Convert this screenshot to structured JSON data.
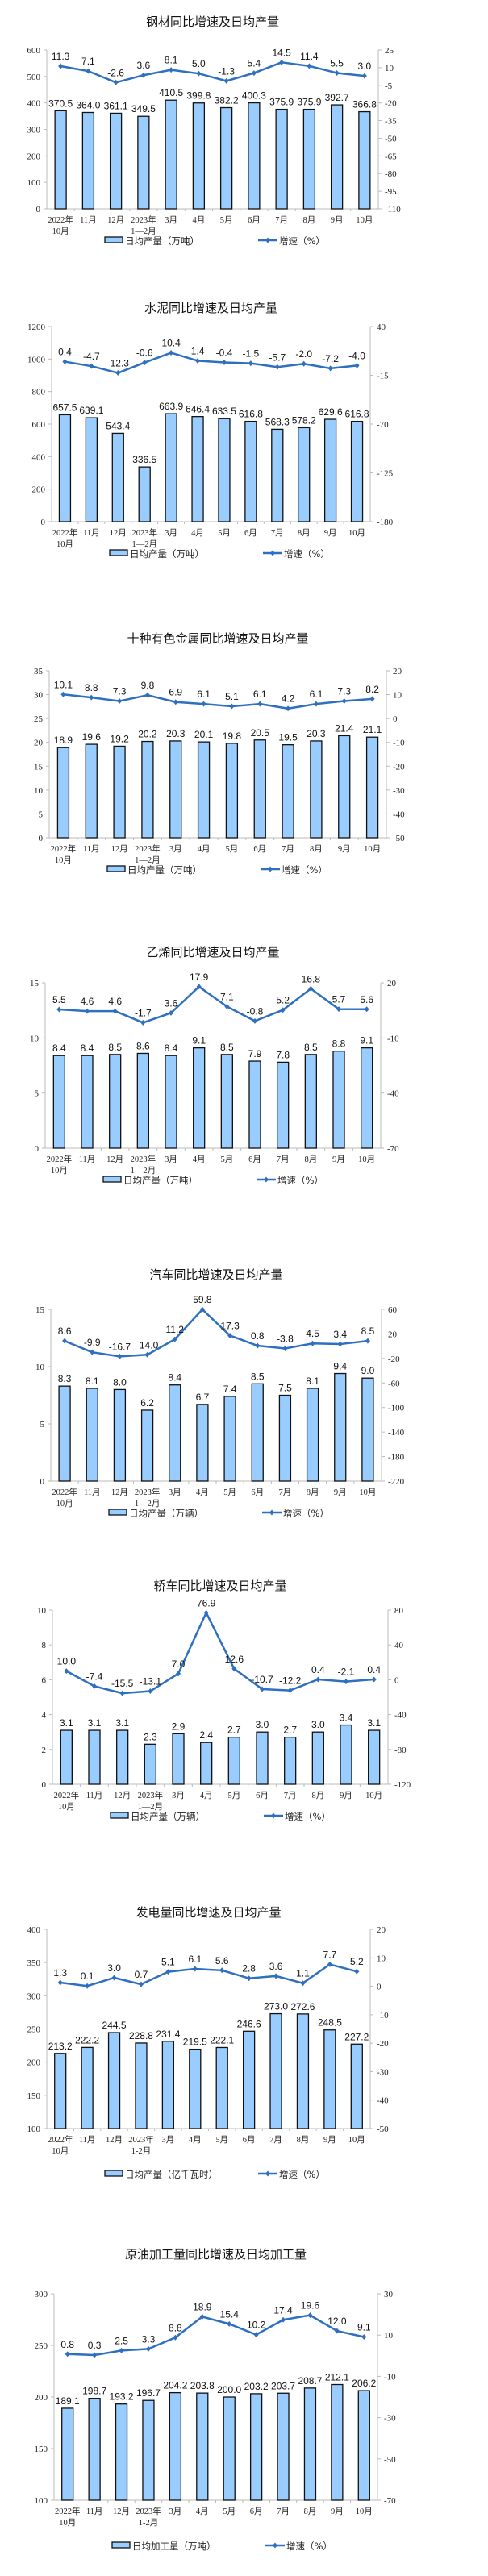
{
  "colors": {
    "bar_fill": "#99CCFF",
    "bar_stroke": "#111111",
    "line": "#2E6FC0",
    "axis": "#BBBBBB"
  },
  "chart_data": [
    {
      "type": "bar+line",
      "title": "钢材同比增速及日均产量",
      "categories": [
        [
          "2022年",
          "10月"
        ],
        [
          "11月"
        ],
        [
          "12月"
        ],
        [
          "2023年",
          "1—2月"
        ],
        [
          "3月"
        ],
        [
          "4月"
        ],
        [
          "5月"
        ],
        [
          "6月"
        ],
        [
          "7月"
        ],
        [
          "8月"
        ],
        [
          "9月"
        ],
        [
          "10月"
        ]
      ],
      "series": [
        {
          "name": "日均产量（万吨）",
          "type": "bar",
          "axis": "left",
          "values": [
            370.5,
            364.0,
            361.1,
            349.5,
            410.5,
            399.8,
            382.2,
            400.3,
            375.9,
            375.9,
            392.7,
            366.8
          ],
          "labels": [
            "370.5",
            "364.0",
            "361.1",
            "349.5",
            "410.5",
            "399.8",
            "382.2",
            "400.3",
            "375.9",
            "375.9",
            "392.7",
            "366.8"
          ]
        },
        {
          "name": "增速（%）",
          "type": "line",
          "axis": "right",
          "values": [
            11.3,
            7.1,
            -2.6,
            3.6,
            8.1,
            5.0,
            -1.3,
            5.4,
            14.5,
            11.4,
            5.5,
            3.0
          ],
          "labels": [
            "11.3",
            "7.1",
            "-2.6",
            "3.6",
            "8.1",
            "5.0",
            "-1.3",
            "5.4",
            "14.5",
            "11.4",
            "5.5",
            "3.0"
          ]
        }
      ],
      "ylim": [
        0,
        600
      ],
      "ystep": 100,
      "y2lim": [
        -110,
        25
      ],
      "y2step": 15,
      "grid": false,
      "legend": "bottom"
    },
    {
      "type": "bar+line",
      "title": "水泥同比增速及日均产量",
      "categories": [
        [
          "2022年",
          "10月"
        ],
        [
          "11月"
        ],
        [
          "12月"
        ],
        [
          "2023年",
          "1—2月"
        ],
        [
          "3月"
        ],
        [
          "4月"
        ],
        [
          "5月"
        ],
        [
          "6月"
        ],
        [
          "7月"
        ],
        [
          "8月"
        ],
        [
          "9月"
        ],
        [
          "10月"
        ]
      ],
      "series": [
        {
          "name": "日均产量（万吨）",
          "type": "bar",
          "axis": "left",
          "values": [
            657.5,
            639.1,
            543.4,
            336.5,
            663.9,
            646.4,
            633.5,
            616.8,
            568.3,
            578.2,
            629.6,
            616.8
          ],
          "labels": [
            "657.5",
            "639.1",
            "543.4",
            "336.5",
            "663.9",
            "646.4",
            "633.5",
            "616.8",
            "568.3",
            "578.2",
            "629.6",
            "616.8"
          ]
        },
        {
          "name": "增速（%）",
          "type": "line",
          "axis": "right",
          "values": [
            0.4,
            -4.7,
            -12.3,
            -0.6,
            10.4,
            1.4,
            -0.4,
            -1.5,
            -5.7,
            -2.0,
            -7.2,
            -4.0
          ],
          "labels": [
            "0.4",
            "-4.7",
            "-12.3",
            "-0.6",
            "10.4",
            "1.4",
            "-0.4",
            "-1.5",
            "-5.7",
            "-2.0",
            "-7.2",
            "-4.0"
          ]
        }
      ],
      "ylim": [
        0,
        1200
      ],
      "ystep": 200,
      "y2lim": [
        -180,
        40
      ],
      "y2step": 55,
      "grid": false,
      "legend": "bottom"
    },
    {
      "type": "bar+line",
      "title": "十种有色金属同比增速及日均产量",
      "categories": [
        [
          "2022年",
          "10月"
        ],
        [
          "11月"
        ],
        [
          "12月"
        ],
        [
          "2023年",
          "1—2月"
        ],
        [
          "3月"
        ],
        [
          "4月"
        ],
        [
          "5月"
        ],
        [
          "6月"
        ],
        [
          "7月"
        ],
        [
          "8月"
        ],
        [
          "9月"
        ],
        [
          "10月"
        ]
      ],
      "series": [
        {
          "name": "日均产量（万吨）",
          "type": "bar",
          "axis": "left",
          "values": [
            18.9,
            19.6,
            19.2,
            20.2,
            20.3,
            20.1,
            19.8,
            20.5,
            19.5,
            20.3,
            21.4,
            21.1
          ],
          "labels": [
            "18.9",
            "19.6",
            "19.2",
            "20.2",
            "20.3",
            "20.1",
            "19.8",
            "20.5",
            "19.5",
            "20.3",
            "21.4",
            "21.1"
          ]
        },
        {
          "name": "增速（%）",
          "type": "line",
          "axis": "right",
          "values": [
            10.1,
            8.8,
            7.3,
            9.8,
            6.9,
            6.1,
            5.1,
            6.1,
            4.2,
            6.1,
            7.3,
            8.2
          ],
          "labels": [
            "10.1",
            "8.8",
            "7.3",
            "9.8",
            "6.9",
            "6.1",
            "5.1",
            "6.1",
            "4.2",
            "6.1",
            "7.3",
            "8.2"
          ]
        }
      ],
      "ylim": [
        0,
        35
      ],
      "ystep": 5,
      "y2lim": [
        -50,
        20
      ],
      "y2step": 10,
      "grid": false,
      "legend": "bottom"
    },
    {
      "type": "bar+line",
      "title": "乙烯同比增速及日均产量",
      "categories": [
        [
          "2022年",
          "10月"
        ],
        [
          "11月"
        ],
        [
          "12月"
        ],
        [
          "2023年",
          "1—2月"
        ],
        [
          "3月"
        ],
        [
          "4月"
        ],
        [
          "5月"
        ],
        [
          "6月"
        ],
        [
          "7月"
        ],
        [
          "8月"
        ],
        [
          "9月"
        ],
        [
          "10月"
        ]
      ],
      "series": [
        {
          "name": "日均产量（万吨）",
          "type": "bar",
          "axis": "left",
          "values": [
            8.4,
            8.4,
            8.5,
            8.6,
            8.4,
            9.1,
            8.5,
            7.9,
            7.8,
            8.5,
            8.8,
            9.1
          ],
          "labels": [
            "8.4",
            "8.4",
            "8.5",
            "8.6",
            "8.4",
            "9.1",
            "8.5",
            "7.9",
            "7.8",
            "8.5",
            "8.8",
            "9.1"
          ]
        },
        {
          "name": "增速（%）",
          "type": "line",
          "axis": "right",
          "values": [
            5.5,
            4.6,
            4.6,
            -1.7,
            3.6,
            17.9,
            7.1,
            -0.8,
            5.2,
            16.8,
            5.7,
            5.6
          ],
          "labels": [
            "5.5",
            "4.6",
            "4.6",
            "-1.7",
            "3.6",
            "17.9",
            "7.1",
            "-0.8",
            "5.2",
            "16.8",
            "5.7",
            "5.6"
          ]
        }
      ],
      "ylim": [
        0,
        15
      ],
      "ystep": 5,
      "y2lim": [
        -70,
        20
      ],
      "y2step": 30,
      "grid": false,
      "legend": "bottom"
    },
    {
      "type": "bar+line",
      "title": "汽车同比增速及日均产量",
      "categories": [
        [
          "2022年",
          "10月"
        ],
        [
          "11月"
        ],
        [
          "12月"
        ],
        [
          "2023年",
          "1—2月"
        ],
        [
          "3月"
        ],
        [
          "4月"
        ],
        [
          "5月"
        ],
        [
          "6月"
        ],
        [
          "7月"
        ],
        [
          "8月"
        ],
        [
          "9月"
        ],
        [
          "10月"
        ]
      ],
      "series": [
        {
          "name": "日均产量（万辆）",
          "type": "bar",
          "axis": "left",
          "values": [
            8.3,
            8.1,
            8.0,
            6.2,
            8.4,
            6.7,
            7.4,
            8.5,
            7.5,
            8.1,
            9.4,
            9.0
          ],
          "labels": [
            "8.3",
            "8.1",
            "8.0",
            "6.2",
            "8.4",
            "6.7",
            "7.4",
            "8.5",
            "7.5",
            "8.1",
            "9.4",
            "9.0"
          ]
        },
        {
          "name": "增速（%）",
          "type": "line",
          "axis": "right",
          "values": [
            8.6,
            -9.9,
            -16.7,
            -14.0,
            11.2,
            59.8,
            17.3,
            0.8,
            -3.8,
            4.5,
            3.4,
            8.5
          ],
          "labels": [
            "8.6",
            "-9.9",
            "-16.7",
            "-14.0",
            "11.2",
            "59.8",
            "17.3",
            "0.8",
            "-3.8",
            "4.5",
            "3.4",
            "8.5"
          ]
        }
      ],
      "ylim": [
        0,
        15
      ],
      "ystep": 5,
      "y2lim": [
        -220,
        60
      ],
      "y2step": 40,
      "grid": false,
      "legend": "bottom"
    },
    {
      "type": "bar+line",
      "title": "轿车同比增速及日均产量",
      "categories": [
        [
          "2022年",
          "10月"
        ],
        [
          "11月"
        ],
        [
          "12月"
        ],
        [
          "2023年",
          "1—2月"
        ],
        [
          "3月"
        ],
        [
          "4月"
        ],
        [
          "5月"
        ],
        [
          "6月"
        ],
        [
          "7月"
        ],
        [
          "8月"
        ],
        [
          "9月"
        ],
        [
          "10月"
        ]
      ],
      "series": [
        {
          "name": "日均产量（万辆）",
          "type": "bar",
          "axis": "left",
          "values": [
            3.1,
            3.1,
            3.1,
            2.3,
            2.9,
            2.4,
            2.7,
            3.0,
            2.7,
            3.0,
            3.4,
            3.1
          ],
          "labels": [
            "3.1",
            "3.1",
            "3.1",
            "2.3",
            "2.9",
            "2.4",
            "2.7",
            "3.0",
            "2.7",
            "3.0",
            "3.4",
            "3.1"
          ]
        },
        {
          "name": "增速（%）",
          "type": "line",
          "axis": "right",
          "values": [
            10.0,
            -7.4,
            -15.5,
            -13.1,
            7.0,
            76.9,
            12.6,
            -10.7,
            -12.2,
            0.4,
            -2.1,
            0.4
          ],
          "labels": [
            "10.0",
            "-7.4",
            "-15.5",
            "-13.1",
            "7.0",
            "76.9",
            "12.6",
            "-10.7",
            "-12.2",
            "0.4",
            "-2.1",
            "0.4"
          ]
        }
      ],
      "ylim": [
        0,
        10
      ],
      "ystep": 2,
      "y2lim": [
        -120,
        80
      ],
      "y2step": 40,
      "grid": false,
      "legend": "bottom"
    },
    {
      "type": "bar+line",
      "title": "发电量同比增速及日均产量",
      "categories": [
        [
          "2022年",
          "10月"
        ],
        [
          "11月"
        ],
        [
          "12月"
        ],
        [
          "2023年",
          "1-2月"
        ],
        [
          "3月"
        ],
        [
          "4月"
        ],
        [
          "5月"
        ],
        [
          "6月"
        ],
        [
          "7月"
        ],
        [
          "8月"
        ],
        [
          "9月"
        ],
        [
          "10月"
        ]
      ],
      "series": [
        {
          "name": "日均产量（亿千瓦时）",
          "type": "bar",
          "axis": "left",
          "values": [
            213.2,
            222.2,
            244.5,
            228.8,
            231.4,
            219.5,
            222.1,
            246.6,
            273.0,
            272.6,
            248.5,
            227.2
          ],
          "labels": [
            "213.2",
            "222.2",
            "244.5",
            "228.8",
            "231.4",
            "219.5",
            "222.1",
            "246.6",
            "273.0",
            "272.6",
            "248.5",
            "227.2"
          ]
        },
        {
          "name": "增速（%）",
          "type": "line",
          "axis": "right",
          "values": [
            1.3,
            0.1,
            3.0,
            0.7,
            5.1,
            6.1,
            5.6,
            2.8,
            3.6,
            1.1,
            7.7,
            5.2
          ],
          "labels": [
            "1.3",
            "0.1",
            "3.0",
            "0.7",
            "5.1",
            "6.1",
            "5.6",
            "2.8",
            "3.6",
            "1.1",
            "7.7",
            "5.2"
          ]
        }
      ],
      "ylim": [
        100,
        400
      ],
      "ystep": 50,
      "y2lim": [
        -50,
        20
      ],
      "y2step": 10,
      "grid": false,
      "legend": "bottom"
    },
    {
      "type": "bar+line",
      "title": "原油加工量同比增速及日均加工量",
      "categories": [
        [
          "2022年",
          "10月"
        ],
        [
          "11月"
        ],
        [
          "12月"
        ],
        [
          "2023年",
          "1-2月"
        ],
        [
          "3月"
        ],
        [
          "4月"
        ],
        [
          "5月"
        ],
        [
          "6月"
        ],
        [
          "7月"
        ],
        [
          "8月"
        ],
        [
          "9月"
        ],
        [
          "10月"
        ]
      ],
      "series": [
        {
          "name": "日均加工量（万吨）",
          "type": "bar",
          "axis": "left",
          "values": [
            189.1,
            198.7,
            193.2,
            196.7,
            204.2,
            203.8,
            200.0,
            203.2,
            203.7,
            208.7,
            212.1,
            206.2
          ],
          "labels": [
            "189.1",
            "198.7",
            "193.2",
            "196.7",
            "204.2",
            "203.8",
            "200.0",
            "203.2",
            "203.7",
            "208.7",
            "212.1",
            "206.2"
          ]
        },
        {
          "name": "增速（%）",
          "type": "line",
          "axis": "right",
          "values": [
            0.8,
            0.3,
            2.5,
            3.3,
            8.8,
            18.9,
            15.4,
            10.2,
            17.4,
            19.6,
            12.0,
            9.1
          ],
          "labels": [
            "0.8",
            "0.3",
            "2.5",
            "3.3",
            "8.8",
            "18.9",
            "15.4",
            "10.2",
            "17.4",
            "19.6",
            "12.0",
            "9.1"
          ]
        }
      ],
      "ylim": [
        100,
        300
      ],
      "ystep": 50,
      "y2lim": [
        -70,
        30
      ],
      "y2step": 20,
      "grid": false,
      "legend": "bottom"
    }
  ]
}
